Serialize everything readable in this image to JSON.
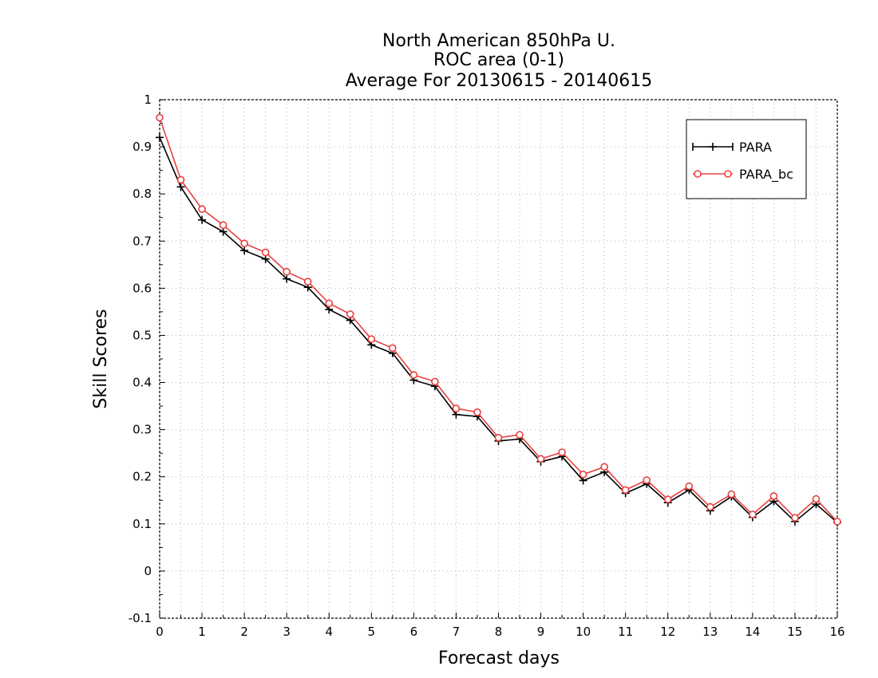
{
  "chart_data": {
    "type": "line",
    "title": [
      "North American 850hPa U.",
      "ROC area (0-1)",
      "Average For 20130615 - 20140615"
    ],
    "xlabel": "Forecast days",
    "ylabel": "Skill Scores",
    "xlim": [
      0,
      16
    ],
    "ylim": [
      -0.1,
      1
    ],
    "xticks": [
      "0",
      "1",
      "2",
      "3",
      "4",
      "5",
      "6",
      "7",
      "8",
      "9",
      "10",
      "11",
      "12",
      "13",
      "14",
      "15",
      "16"
    ],
    "yticks": [
      "-0.1",
      "0",
      "0.1",
      "0.2",
      "0.3",
      "0.4",
      "0.5",
      "0.6",
      "0.7",
      "0.8",
      "0.9",
      "1"
    ],
    "grid": true,
    "legend_position": "top-right",
    "x": [
      0,
      0.5,
      1,
      1.5,
      2,
      2.5,
      3,
      3.5,
      4,
      4.5,
      5,
      5.5,
      6,
      6.5,
      7,
      7.5,
      8,
      8.5,
      9,
      9.5,
      10,
      10.5,
      11,
      11.5,
      12,
      12.5,
      13,
      13.5,
      14,
      14.5,
      15,
      15.5,
      16
    ],
    "series": [
      {
        "name": "PARA",
        "color": "#000000",
        "marker": "plus",
        "values": [
          0.92,
          0.815,
          0.745,
          0.72,
          0.68,
          0.662,
          0.62,
          0.602,
          0.555,
          0.532,
          0.48,
          0.462,
          0.405,
          0.392,
          0.332,
          0.328,
          0.276,
          0.28,
          0.232,
          0.243,
          0.192,
          0.21,
          0.165,
          0.185,
          0.145,
          0.172,
          0.128,
          0.158,
          0.114,
          0.148,
          0.105,
          0.142,
          0.103
        ]
      },
      {
        "name": "PARA_bc",
        "color": "#e84040",
        "marker": "circle",
        "values": [
          0.962,
          0.83,
          0.768,
          0.734,
          0.695,
          0.676,
          0.635,
          0.614,
          0.568,
          0.545,
          0.492,
          0.473,
          0.416,
          0.402,
          0.345,
          0.337,
          0.283,
          0.289,
          0.238,
          0.252,
          0.205,
          0.221,
          0.172,
          0.193,
          0.152,
          0.18,
          0.136,
          0.163,
          0.12,
          0.159,
          0.113,
          0.153,
          0.105
        ]
      }
    ]
  }
}
